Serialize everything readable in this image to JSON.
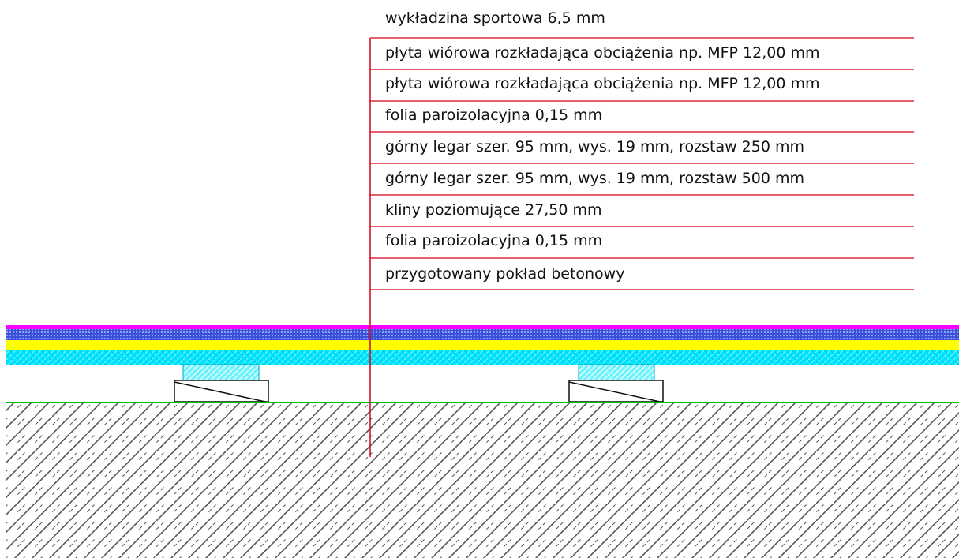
{
  "drawing": {
    "layers": [
      {
        "label": "wykładzina sportowa 6,5 mm"
      },
      {
        "label": "płyta wiórowa rozkładająca obciążenia np. MFP 12,00 mm"
      },
      {
        "label": "płyta wiórowa rozkładająca obciążenia np. MFP 12,00 mm"
      },
      {
        "label": "folia paroizolacyjna 0,15 mm"
      },
      {
        "label": "górny legar szer. 95 mm, wys. 19 mm, rozstaw 250 mm"
      },
      {
        "label": "górny legar szer. 95 mm, wys. 19 mm, rozstaw 500 mm"
      },
      {
        "label": "kliny poziomujące 27,50 mm"
      },
      {
        "label": "folia paroizolacyjna 0,15 mm"
      },
      {
        "label": "przygotowany pokład betonowy"
      }
    ],
    "colors": {
      "leader_line": "#d0021b",
      "sport_surface": "#ff00ff",
      "chipboard_1": "#2b1fd6",
      "chipboard_2": "#ffff00",
      "joist_layer": "#00ffff",
      "vapor_barrier": "#00c000",
      "concrete_hatch": "#555555",
      "outline": "#111111"
    }
  }
}
